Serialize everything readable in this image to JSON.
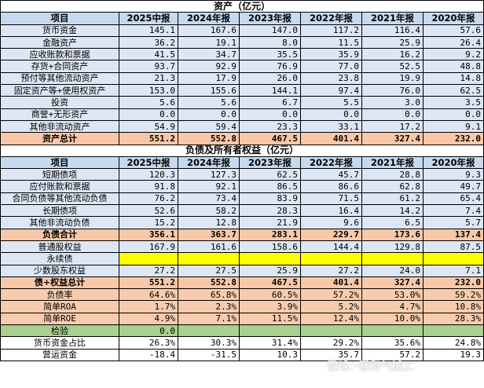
{
  "assets": {
    "title": "资产（亿元）",
    "header": [
      "项目",
      "2025中报",
      "2024年报",
      "2023年报",
      "2022年报",
      "2021年报",
      "2020年报"
    ],
    "rows": [
      {
        "label": "货币资金",
        "values": [
          "145.1",
          "167.6",
          "147.0",
          "117.2",
          "116.4",
          "57.6"
        ]
      },
      {
        "label": "金融资产",
        "values": [
          "36.2",
          "19.1",
          "8.0",
          "11.5",
          "25.9",
          "26.4"
        ]
      },
      {
        "label": "应收账款和票据",
        "values": [
          "41.5",
          "34.7",
          "35.5",
          "35.9",
          "16.2",
          "9.2"
        ]
      },
      {
        "label": "存货+合同资产",
        "values": [
          "93.7",
          "92.9",
          "76.9",
          "77.0",
          "52.5",
          "48.8"
        ]
      },
      {
        "label": "预付等其他流动资产",
        "values": [
          "21.3",
          "17.9",
          "26.0",
          "23.8",
          "19.9",
          "14.8"
        ]
      },
      {
        "label": "固定资产等+使用权资产",
        "values": [
          "153.0",
          "155.6",
          "144.1",
          "97.4",
          "76.0",
          "62.5"
        ]
      },
      {
        "label": "投资",
        "values": [
          "5.6",
          "5.6",
          "6.7",
          "5.5",
          "3.0",
          "3.5"
        ]
      },
      {
        "label": "商誉+无形资产",
        "values": [
          "0.0",
          "0.0",
          "0.0",
          "0.0",
          "0.0",
          "0.0"
        ]
      },
      {
        "label": "其他非流动资产",
        "values": [
          "54.9",
          "59.4",
          "23.3",
          "33.1",
          "17.2",
          "9.1"
        ]
      }
    ],
    "total": {
      "label": "资产总计",
      "values": [
        "551.2",
        "552.8",
        "467.5",
        "401.4",
        "327.4",
        "232.0"
      ]
    }
  },
  "liabilities": {
    "title": "负债及所有者权益（亿元）",
    "header": [
      "项目",
      "2025中报",
      "2024年报",
      "2023年报",
      "2022年报",
      "2021年报",
      "2020年报"
    ],
    "rows": [
      {
        "label": "短期债项",
        "values": [
          "120.3",
          "127.3",
          "62.5",
          "45.7",
          "28.8",
          "9.3"
        ]
      },
      {
        "label": "应付账款和票据",
        "values": [
          "91.8",
          "92.1",
          "86.5",
          "86.6",
          "62.8",
          "49.7"
        ]
      },
      {
        "label": "合同负债等其他流动负债",
        "values": [
          "76.2",
          "73.4",
          "83.9",
          "71.5",
          "61.2",
          "65.4"
        ]
      },
      {
        "label": "长期债项",
        "values": [
          "52.6",
          "58.2",
          "28.3",
          "16.4",
          "14.2",
          "7.4"
        ]
      },
      {
        "label": "其他非流动负债",
        "values": [
          "15.2",
          "12.8",
          "21.9",
          "9.6",
          "6.5",
          "5.7"
        ]
      }
    ],
    "liab_total": {
      "label": "负债合计",
      "values": [
        "356.1",
        "363.7",
        "283.1",
        "229.7",
        "173.6",
        "137.4"
      ]
    },
    "equity": {
      "label": "普通股权益",
      "values": [
        "167.9",
        "161.6",
        "158.6",
        "144.4",
        "129.8",
        "87.5"
      ]
    },
    "perpetual": {
      "label": "永续债",
      "values": [
        "",
        "",
        "",
        "",
        "",
        ""
      ]
    },
    "minority": {
      "label": "少数股东权益",
      "values": [
        "27.2",
        "27.5",
        "25.9",
        "27.2",
        "24.0",
        "7.1"
      ]
    },
    "total": {
      "label": "债+权益总计",
      "values": [
        "551.2",
        "552.8",
        "467.5",
        "401.4",
        "327.4",
        "232.0"
      ]
    }
  },
  "ratios": [
    {
      "label": "负债率",
      "values": [
        "64.6%",
        "65.8%",
        "60.5%",
        "57.2%",
        "53.0%",
        "59.2%"
      ]
    },
    {
      "label": "简单ROA",
      "values": [
        "1.7%",
        "2.3%",
        "3.9%",
        "5.2%",
        "4.7%",
        "10.8%"
      ]
    },
    {
      "label": "简单ROE",
      "values": [
        "4.9%",
        "7.1%",
        "11.5%",
        "12.4%",
        "10.0%",
        "28.3%"
      ]
    }
  ],
  "check": {
    "label": "检验",
    "values": [
      "0.0",
      "",
      "",
      "",
      "",
      ""
    ]
  },
  "extra": [
    {
      "label": "货币资金占比",
      "values": [
        "26.3%",
        "30.3%",
        "31.4%",
        "29.2%",
        "35.6%",
        "24.8%"
      ]
    },
    {
      "label": "营运资金",
      "values": [
        "-18.4",
        "-31.5",
        "10.3",
        "35.7",
        "57.2",
        "19.3"
      ]
    }
  ],
  "watermark": "雪球：·晋和气械工"
}
